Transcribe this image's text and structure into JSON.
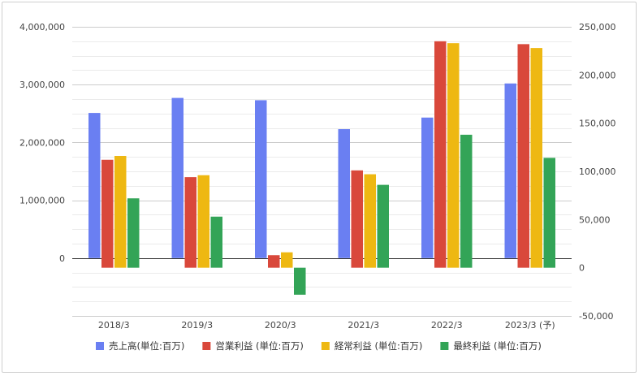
{
  "chart_data": {
    "type": "bar",
    "categories": [
      "2018/3",
      "2019/3",
      "2020/3",
      "2021/3",
      "2022/3",
      "2023/3 (予)"
    ],
    "series": [
      {
        "name": "売上高(単位:百万)",
        "axis": "left",
        "color": "#6a7ff2",
        "values": [
          2510000,
          2770000,
          2730000,
          2230000,
          2430000,
          3020000
        ]
      },
      {
        "name": "営業利益 (単位:百万)",
        "axis": "right",
        "color": "#d9483b",
        "values": [
          112000,
          94000,
          13000,
          101000,
          235000,
          232000
        ]
      },
      {
        "name": "経常利益 (単位:百万)",
        "axis": "right",
        "color": "#eeb812",
        "values": [
          116000,
          96000,
          16000,
          97000,
          233000,
          228000
        ]
      },
      {
        "name": "最終利益 (単位:百万)",
        "axis": "right",
        "color": "#33a457",
        "values": [
          72000,
          53000,
          -28000,
          86000,
          138000,
          114000
        ]
      }
    ],
    "left_axis": {
      "ylim": [
        -1000000,
        4000000
      ],
      "ticks": [
        0,
        1000000,
        2000000,
        3000000,
        4000000
      ],
      "tick_labels": [
        "0",
        "1,000,000",
        "2,000,000",
        "3,000,000",
        "4,000,000"
      ]
    },
    "right_axis": {
      "ylim": [
        -50000,
        250000
      ],
      "ticks": [
        -50000,
        0,
        50000,
        100000,
        150000,
        200000,
        250000
      ],
      "tick_labels": [
        "-50,000",
        "0",
        "50,000",
        "100,000",
        "150,000",
        "200,000",
        "250,000"
      ]
    },
    "title": "",
    "xlabel": "",
    "ylabel": "",
    "grid": true,
    "legend_position": "bottom"
  }
}
